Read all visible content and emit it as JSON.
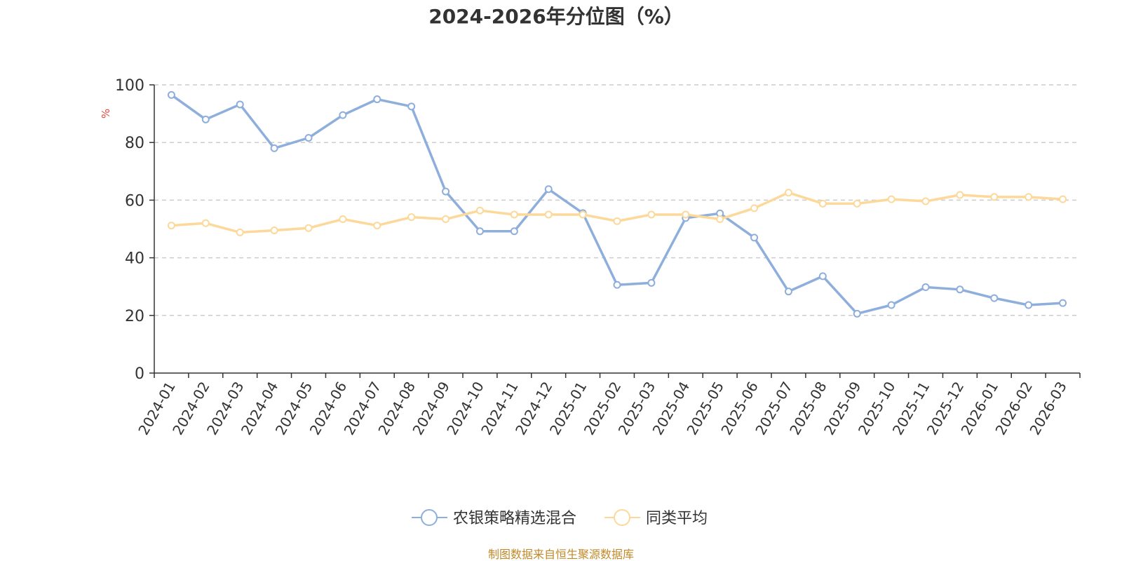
{
  "chart_data": {
    "type": "line",
    "title": "2024-2026年分位图（%）",
    "ylabel": "%",
    "ylim": [
      0,
      100
    ],
    "yticks": [
      0,
      20,
      40,
      60,
      80,
      100
    ],
    "categories": [
      "2024-01",
      "2024-02",
      "2024-03",
      "2024-04",
      "2024-05",
      "2024-06",
      "2024-07",
      "2024-08",
      "2024-09",
      "2024-10",
      "2024-11",
      "2024-12",
      "2025-01",
      "2025-02",
      "2025-03",
      "2025-04",
      "2025-05",
      "2025-06",
      "2025-07",
      "2025-08",
      "2025-09",
      "2025-10",
      "2025-11",
      "2025-12",
      "2026-01",
      "2026-02",
      "2026-03"
    ],
    "series": [
      {
        "name": "农银策略精选混合",
        "color": "#8eaedc",
        "values": [
          96.5,
          88.0,
          93.2,
          78.0,
          81.6,
          89.5,
          95.0,
          92.5,
          63.0,
          49.2,
          49.2,
          63.8,
          55.5,
          30.6,
          31.3,
          53.8,
          55.4,
          47.0,
          28.3,
          33.6,
          20.6,
          23.6,
          29.8,
          29.0,
          26.0,
          23.6,
          24.3
        ]
      },
      {
        "name": "同类平均",
        "color": "#fcd99a",
        "values": [
          51.2,
          52.0,
          48.8,
          49.5,
          50.3,
          53.4,
          51.2,
          54.1,
          53.4,
          56.4,
          55.0,
          55.0,
          55.0,
          52.7,
          55.0,
          55.0,
          53.4,
          57.2,
          62.6,
          58.8,
          58.8,
          60.3,
          59.6,
          61.8,
          61.1,
          61.1,
          60.3
        ]
      }
    ],
    "grid": true,
    "legend_position": "bottom-center"
  },
  "source_text": "制图数据来自恒生聚源数据库",
  "colors": {
    "axis": "#333333",
    "grid": "#cccccc",
    "ylabel": "#e8473b",
    "source": "#c08a2a"
  }
}
